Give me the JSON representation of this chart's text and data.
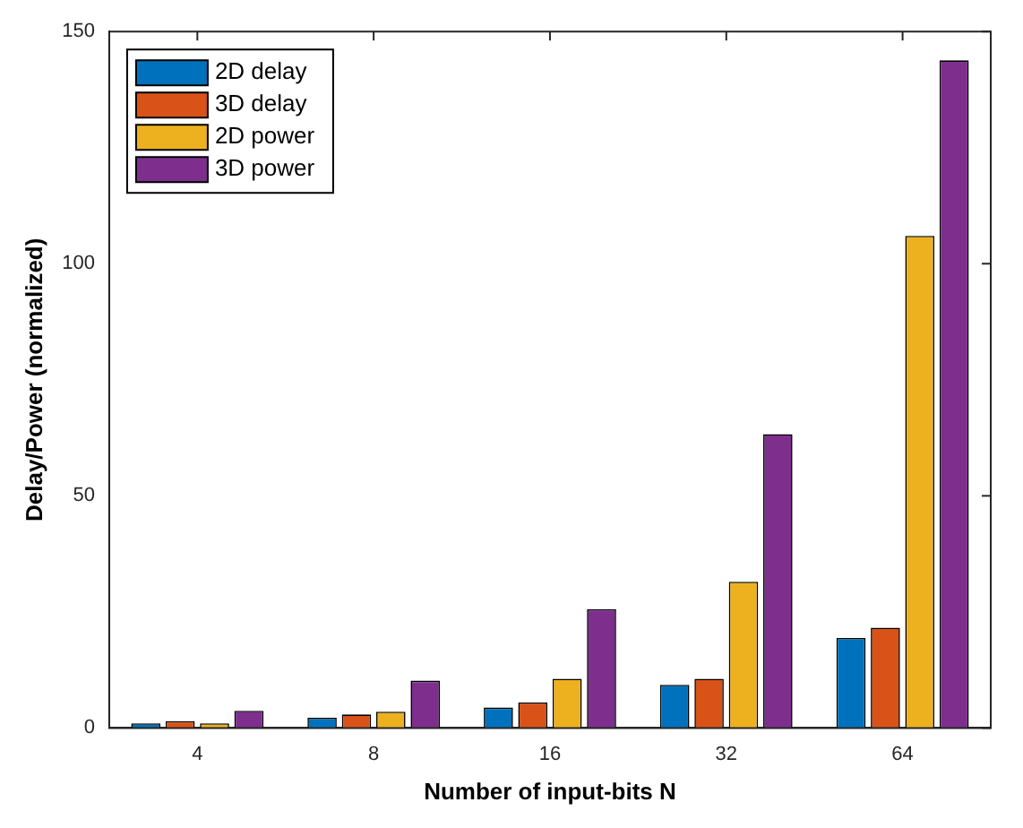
{
  "chart_data": {
    "type": "bar",
    "xlabel": "Number of input-bits N",
    "ylabel": "Delay/Power (normalized)",
    "categories": [
      "4",
      "8",
      "16",
      "32",
      "64"
    ],
    "series": [
      {
        "name": "2D delay",
        "color": "#0072bd",
        "values": [
          1,
          2.2,
          4.4,
          9.3,
          19.4
        ]
      },
      {
        "name": "3D delay",
        "color": "#d95319",
        "values": [
          1.5,
          2.9,
          5.5,
          10.6,
          21.6
        ]
      },
      {
        "name": "2D power",
        "color": "#edb120",
        "values": [
          1,
          3.5,
          10.6,
          31.5,
          106
        ]
      },
      {
        "name": "3D power",
        "color": "#7e2f8e",
        "values": [
          3.7,
          10.2,
          25.6,
          63.3,
          143.8
        ]
      }
    ],
    "ylim": [
      0,
      150
    ],
    "yticks": [
      0,
      50,
      100,
      150
    ],
    "grid": false,
    "legend": "top left"
  }
}
